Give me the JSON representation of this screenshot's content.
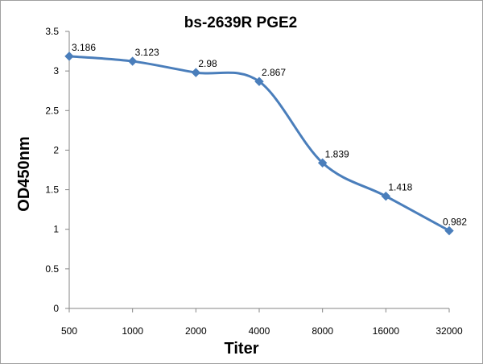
{
  "chart_data": {
    "type": "line",
    "title": "bs-2639R PGE2",
    "xlabel": "Titer",
    "ylabel": "OD450nm",
    "categories": [
      "500",
      "1000",
      "2000",
      "4000",
      "8000",
      "16000",
      "32000"
    ],
    "series": [
      {
        "values": [
          3.186,
          3.123,
          2.98,
          2.867,
          1.839,
          1.418,
          0.982
        ],
        "data_labels": [
          "3.186",
          "3.123",
          "2.98",
          "2.867",
          "1.839",
          "1.418",
          "0.982"
        ],
        "color": "#4a7ebb",
        "marker": "diamond",
        "smooth": true
      }
    ],
    "ylim": [
      0,
      3.5
    ],
    "yticks": [
      0,
      0.5,
      1,
      1.5,
      2,
      2.5,
      3,
      3.5
    ],
    "ytick_labels": [
      "0",
      "0.5",
      "1",
      "1.5",
      "2",
      "2.5",
      "3",
      "3.5"
    ],
    "grid": false,
    "legend": "none"
  }
}
